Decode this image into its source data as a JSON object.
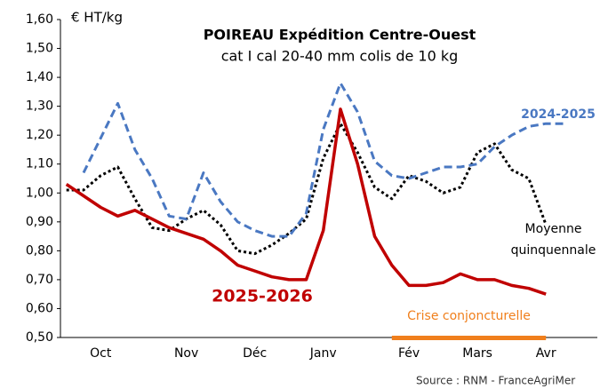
{
  "chart_data": {
    "type": "line",
    "title": "POIREAU Expédition Centre-Ouest",
    "subtitle": "cat I cal 20-40 mm colis de 10 kg",
    "y_label": "€ HT/kg",
    "source": "Source : RNM - FranceAgriMer",
    "x": [
      0,
      1,
      2,
      3,
      4,
      5,
      6,
      7,
      8,
      9,
      10,
      11,
      12,
      13,
      14,
      15,
      16,
      17,
      18,
      19,
      20,
      21,
      22,
      23,
      24,
      25,
      26,
      27,
      28,
      29
    ],
    "xlim": [
      -0.35,
      31
    ],
    "xticks": [
      {
        "value": 2,
        "label": "Oct"
      },
      {
        "value": 7,
        "label": "Nov"
      },
      {
        "value": 11,
        "label": "Déc"
      },
      {
        "value": 15,
        "label": "Janv"
      },
      {
        "value": 20,
        "label": "Fév"
      },
      {
        "value": 24,
        "label": "Mars"
      },
      {
        "value": 28,
        "label": "Avr"
      }
    ],
    "ylim": [
      0.5,
      1.6
    ],
    "yticks": [
      {
        "value": 0.5,
        "label": "0,50"
      },
      {
        "value": 0.6,
        "label": "0,60"
      },
      {
        "value": 0.7,
        "label": "0,70"
      },
      {
        "value": 0.8,
        "label": "0,80"
      },
      {
        "value": 0.9,
        "label": "0,90"
      },
      {
        "value": 1.0,
        "label": "1,00"
      },
      {
        "value": 1.1,
        "label": "1,10"
      },
      {
        "value": 1.2,
        "label": "1,20"
      },
      {
        "value": 1.3,
        "label": "1,30"
      },
      {
        "value": 1.4,
        "label": "1,40"
      },
      {
        "value": 1.5,
        "label": "1,50"
      },
      {
        "value": 1.6,
        "label": "1,60"
      }
    ],
    "grid": false,
    "series": [
      {
        "name": "Moyenne quinquennale",
        "color": "#000000",
        "style": "dotted",
        "values": [
          1.01,
          1.01,
          1.06,
          1.09,
          0.98,
          0.88,
          0.87,
          0.91,
          0.94,
          0.89,
          0.8,
          0.79,
          0.82,
          0.86,
          0.91,
          1.12,
          1.24,
          1.14,
          1.02,
          0.98,
          1.06,
          1.04,
          1.0,
          1.02,
          1.14,
          1.17,
          1.08,
          1.05,
          0.89,
          null
        ]
      },
      {
        "name": "2024-2025",
        "color": "#4a78c2",
        "style": "dashed",
        "values": [
          null,
          1.07,
          1.19,
          1.31,
          1.15,
          1.05,
          0.92,
          0.91,
          1.07,
          0.97,
          0.9,
          0.87,
          0.85,
          0.85,
          0.93,
          1.22,
          1.38,
          1.28,
          1.11,
          1.06,
          1.05,
          1.07,
          1.09,
          1.09,
          1.1,
          1.16,
          1.2,
          1.23,
          1.24,
          1.24
        ]
      },
      {
        "name": "2025-2026",
        "color": "#c00000",
        "style": "solid",
        "values": [
          1.03,
          0.99,
          0.95,
          0.92,
          0.94,
          0.91,
          0.88,
          0.86,
          0.84,
          0.8,
          0.75,
          0.73,
          0.71,
          0.7,
          0.7,
          0.87,
          1.29,
          1.1,
          0.85,
          0.75,
          0.68,
          0.68,
          0.69,
          0.72,
          0.7,
          0.7,
          0.68,
          0.67,
          0.65,
          null
        ]
      }
    ],
    "annotations": [
      {
        "text": "Crise conjoncturelle",
        "color": "#f07f1c",
        "x": [
          19,
          28
        ]
      }
    ]
  }
}
